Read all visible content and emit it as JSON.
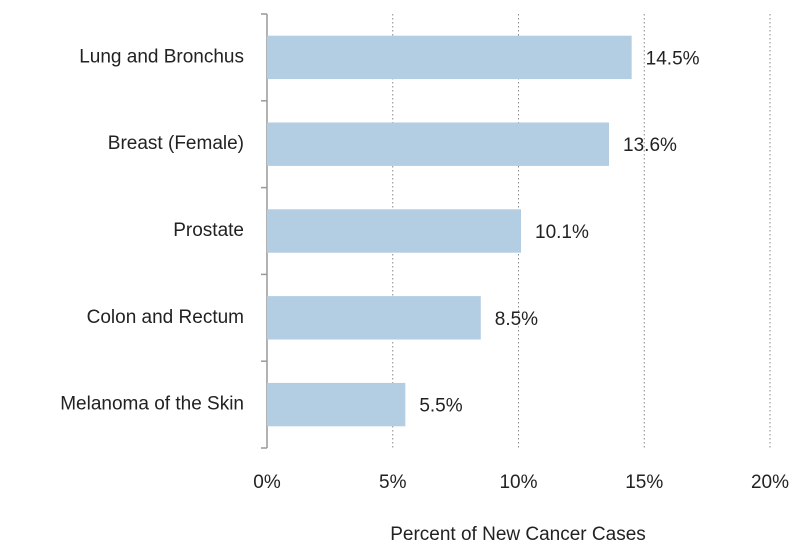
{
  "chart_data": {
    "type": "bar",
    "orientation": "horizontal",
    "categories": [
      "Lung and Bronchus",
      "Breast (Female)",
      "Prostate",
      "Colon and Rectum",
      "Melanoma of the Skin"
    ],
    "values": [
      14.5,
      13.6,
      10.1,
      8.5,
      5.5
    ],
    "value_labels": [
      "14.5%",
      "13.6%",
      "10.1%",
      "8.5%",
      "5.5%"
    ],
    "color": "#b3cde3",
    "xlabel": "Percent of New Cancer Cases",
    "xlim": [
      0,
      20
    ],
    "xticks": [
      {
        "value": 0,
        "label": "0%"
      },
      {
        "value": 5,
        "label": "5%"
      },
      {
        "value": 10,
        "label": "10%"
      },
      {
        "value": 15,
        "label": "15%"
      },
      {
        "value": 20,
        "label": "20%"
      }
    ],
    "grid": true
  }
}
